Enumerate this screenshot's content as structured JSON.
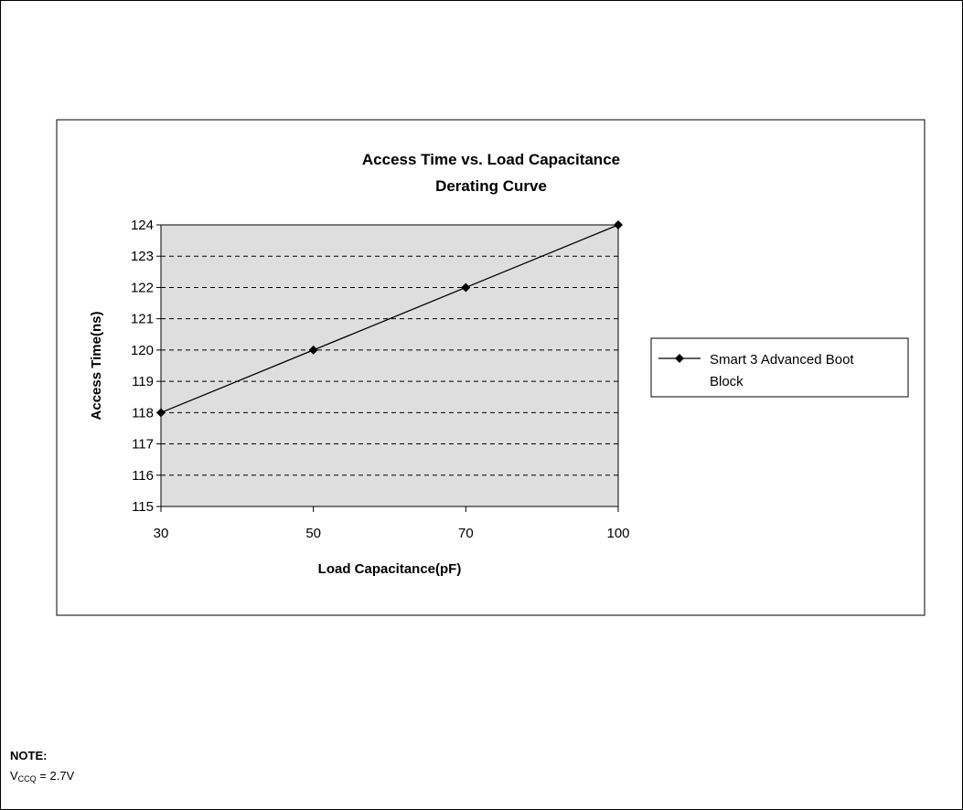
{
  "chart_data": {
    "type": "line",
    "title": [
      "Access Time vs. Load Capacitance",
      "Derating Curve"
    ],
    "xlabel": "Load Capacitance(pF)",
    "ylabel": "Access Time(ns)",
    "categories": [
      "30",
      "50",
      "70",
      "100"
    ],
    "series": [
      {
        "name": [
          "Smart 3 Advanced Boot",
          "Block"
        ],
        "values": [
          118,
          120,
          122,
          124
        ],
        "color": "#000000",
        "marker": "diamond"
      }
    ],
    "ylim": [
      115,
      124
    ],
    "yticks": [
      115,
      116,
      117,
      118,
      119,
      120,
      121,
      122,
      123,
      124
    ],
    "grid": "horizontal-dashed",
    "plot_background": "#dedede",
    "legend_position": "right"
  },
  "note": {
    "heading": "NOTE:",
    "prefix": "V",
    "subscript": "CCQ",
    "suffix": " = 2.7V"
  }
}
